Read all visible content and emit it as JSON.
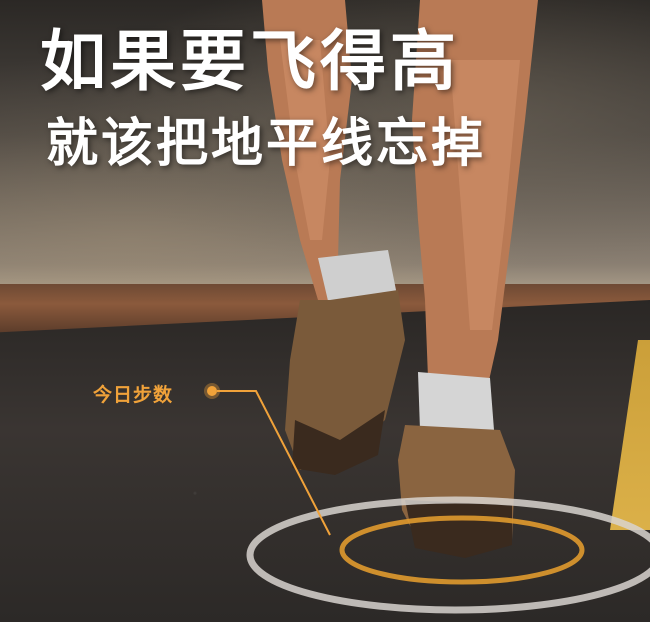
{
  "headline": "如果要飞得高",
  "subline": "就该把地平线忘掉",
  "steps_label": "今日步数",
  "colors": {
    "accent": "#f0a23a",
    "text": "#ffffff",
    "ring_outer": "#d8d4cf",
    "ring_inner": "#e09a2e",
    "road_line": "#e4b74a"
  },
  "icons": {
    "step_marker": "orange-dot-marker",
    "target_ring": "concentric-ring"
  }
}
